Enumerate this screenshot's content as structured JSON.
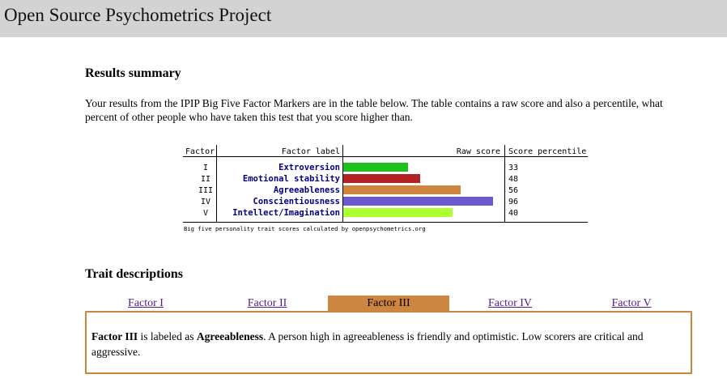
{
  "site": {
    "title": "Open Source Psychometrics Project"
  },
  "results": {
    "heading": "Results summary",
    "intro": "Your results from the IPIP Big Five Factor Markers are in the table below. The table contains a raw score and also a percentile, what percent of other people who have taken this test that you score higher than."
  },
  "chart_data": {
    "type": "bar",
    "headers": {
      "factor": "Factor",
      "label": "Factor label",
      "raw": "Raw score",
      "percentile": "Score percentile"
    },
    "categories": [
      "Extroversion",
      "Emotional stability",
      "Agreeableness",
      "Conscientiousness",
      "Intellect/Imagination"
    ],
    "factors": [
      "I",
      "II",
      "III",
      "IV",
      "V"
    ],
    "values": [
      33,
      48,
      56,
      96,
      40
    ],
    "raw_scores": [
      16,
      19,
      29,
      37,
      27
    ],
    "raw_max": 40,
    "colors": [
      "#1ec01e",
      "#b22222",
      "#cd853f",
      "#6a5acd",
      "#adff2f"
    ],
    "caption": "Big five personality trait scores calculated by openpsychometrics.org"
  },
  "traits": {
    "heading": "Trait descriptions",
    "tabs": [
      {
        "label": "Factor I",
        "active": false
      },
      {
        "label": "Factor II",
        "active": false
      },
      {
        "label": "Factor III",
        "active": true
      },
      {
        "label": "Factor IV",
        "active": false
      },
      {
        "label": "Factor V",
        "active": false
      }
    ],
    "description": {
      "factor": "Factor III",
      "mid": " is labeled as ",
      "label": "Agreeableness",
      "rest": ". A person high in agreeableness is friendly and optimistic. Low scorers are critical and aggressive."
    }
  }
}
